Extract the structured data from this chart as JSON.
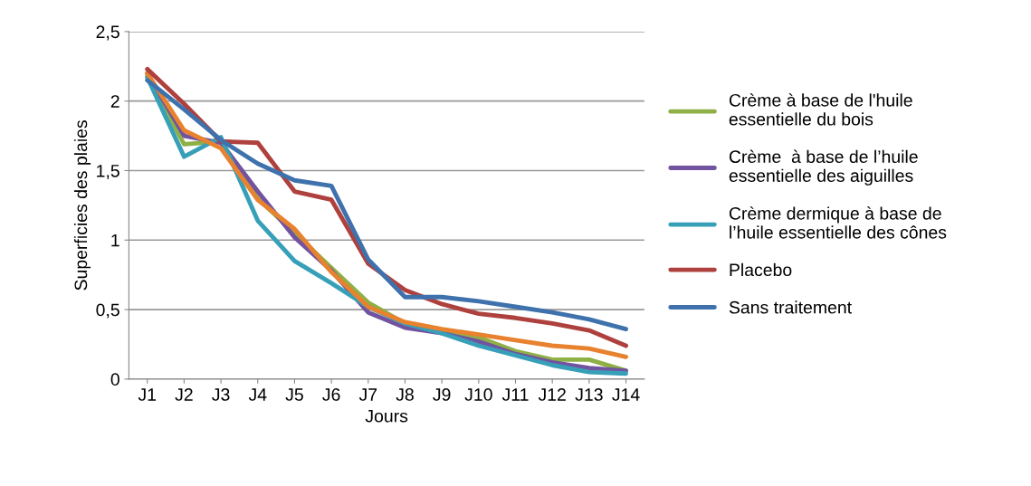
{
  "chart_data": {
    "type": "line",
    "xlabel": "Jours",
    "ylabel": "Superficies des plaies",
    "categories": [
      "J1",
      "J2",
      "J3",
      "J4",
      "J5",
      "J6",
      "J7",
      "J8",
      "J9",
      "J10",
      "J11",
      "J12",
      "J13",
      "J14"
    ],
    "ylim": [
      0,
      2.5
    ],
    "yticks": [
      0,
      {
        "value": 0.5,
        "label": "0,5"
      },
      1,
      {
        "value": 1.5,
        "label": "1,5"
      },
      2,
      {
        "value": 2.5,
        "label": "2,5"
      }
    ],
    "grid": "y",
    "legend": "right",
    "marker": "none",
    "line_style": "solid",
    "series": [
      {
        "name": "Crème à base de l'huile\nessentielle du bois",
        "color": "#8eb045",
        "values": [
          2.18,
          1.69,
          1.71,
          1.3,
          1.05,
          0.8,
          0.55,
          0.4,
          0.35,
          0.3,
          0.2,
          0.14,
          0.14,
          0.06
        ]
      },
      {
        "name": "Crème  à base de l’huile\nessentielle des aiguilles",
        "color": "#7153a0",
        "values": [
          2.2,
          1.75,
          1.7,
          1.35,
          1.02,
          0.78,
          0.48,
          0.37,
          0.33,
          0.27,
          0.18,
          0.12,
          0.08,
          0.06
        ]
      },
      {
        "name": "Crème dermique à base de\nl’huile essentielle des cônes",
        "color": "#37a0b8",
        "values": [
          2.17,
          1.6,
          1.74,
          1.14,
          0.85,
          0.69,
          0.52,
          0.4,
          0.33,
          0.24,
          0.17,
          0.1,
          0.05,
          0.04
        ]
      },
      {
        "color": "#e8822e",
        "values": [
          2.2,
          1.79,
          1.66,
          1.29,
          1.08,
          0.77,
          0.52,
          0.41,
          0.36,
          0.32,
          0.28,
          0.24,
          0.22,
          0.16
        ]
      },
      {
        "name": "Placebo",
        "color": "#ae413e",
        "values": [
          2.23,
          1.98,
          1.71,
          1.7,
          1.35,
          1.29,
          0.83,
          0.64,
          0.54,
          0.47,
          0.44,
          0.4,
          0.35,
          0.24
        ]
      },
      {
        "name": "Sans traitement",
        "color": "#3f72ad",
        "values": [
          2.15,
          1.94,
          1.72,
          1.55,
          1.43,
          1.39,
          0.86,
          0.59,
          0.59,
          0.56,
          0.52,
          0.48,
          0.43,
          0.36
        ]
      }
    ]
  }
}
